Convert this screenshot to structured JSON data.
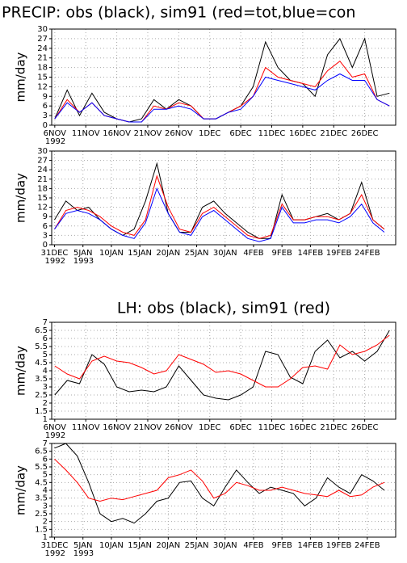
{
  "chart_data": [
    {
      "type": "line",
      "title": "PRECIP: obs (black), sim91 (red=tot,blue=con",
      "ylabel": "mm/day",
      "x": [
        0,
        2,
        4,
        6,
        8,
        10,
        12,
        14,
        16,
        18,
        20,
        22,
        24,
        26,
        28,
        30,
        32,
        34,
        36,
        38,
        40,
        42,
        44,
        46,
        48,
        50,
        52,
        54
      ],
      "xlim": [
        -0.5,
        55
      ],
      "xticks": [
        {
          "value": 0,
          "label": "6NOV"
        },
        {
          "value": 5,
          "label": "11NOV"
        },
        {
          "value": 10,
          "label": "16NOV"
        },
        {
          "value": 15,
          "label": "21NOV"
        },
        {
          "value": 20,
          "label": "26NOV"
        },
        {
          "value": 25,
          "label": "1DEC"
        },
        {
          "value": 30,
          "label": "6DEC"
        },
        {
          "value": 35,
          "label": "11DEC"
        },
        {
          "value": 40,
          "label": "16DEC"
        },
        {
          "value": 45,
          "label": "21DEC"
        },
        {
          "value": 50,
          "label": "26DEC"
        }
      ],
      "xtick_years": [
        {
          "value": 0,
          "label": "1992"
        }
      ],
      "ylim": [
        0,
        30
      ],
      "yticks": [
        0,
        3,
        6,
        9,
        12,
        15,
        18,
        21,
        24,
        27,
        30
      ],
      "grid": true,
      "series": [
        {
          "color": "#000000",
          "values": [
            2,
            11,
            3,
            10,
            4,
            2,
            1,
            2,
            8,
            5,
            8,
            6,
            2,
            2,
            4,
            6,
            12,
            26,
            18,
            14,
            13,
            9,
            22,
            27,
            18,
            27,
            9,
            10
          ]
        },
        {
          "color": "#ff0000",
          "values": [
            2,
            8,
            4,
            7,
            3,
            2,
            1,
            1,
            6,
            5,
            7,
            6,
            2,
            2,
            4,
            6,
            9,
            18,
            15,
            14,
            13,
            12,
            17,
            20,
            15,
            16,
            8,
            6
          ]
        },
        {
          "color": "#0000ff",
          "values": [
            2,
            7,
            4,
            7,
            3,
            2,
            1,
            1,
            5,
            5,
            6,
            5,
            2,
            2,
            4,
            5,
            9,
            15,
            14,
            13,
            12,
            11,
            14,
            16,
            14,
            14,
            8,
            6
          ]
        }
      ]
    },
    {
      "type": "line",
      "ylabel": "mm/day",
      "x": [
        0,
        2,
        4,
        6,
        8,
        10,
        12,
        14,
        16,
        18,
        20,
        22,
        24,
        26,
        28,
        30,
        32,
        34,
        36,
        38,
        40,
        42,
        44,
        46,
        48,
        50,
        52,
        54,
        56,
        58
      ],
      "xlim": [
        -0.5,
        60
      ],
      "xticks": [
        {
          "value": 0,
          "label": "31DEC"
        },
        {
          "value": 5,
          "label": "5JAN"
        },
        {
          "value": 10,
          "label": "10JAN"
        },
        {
          "value": 15,
          "label": "15JAN"
        },
        {
          "value": 20,
          "label": "20JAN"
        },
        {
          "value": 25,
          "label": "25JAN"
        },
        {
          "value": 30,
          "label": "30JAN"
        },
        {
          "value": 35,
          "label": "4FEB"
        },
        {
          "value": 40,
          "label": "9FEB"
        },
        {
          "value": 45,
          "label": "14FEB"
        },
        {
          "value": 50,
          "label": "19FEB"
        },
        {
          "value": 55,
          "label": "24FEB"
        }
      ],
      "xtick_years": [
        {
          "value": 0,
          "label": "1992"
        },
        {
          "value": 5,
          "label": "1993"
        }
      ],
      "ylim": [
        0,
        30
      ],
      "yticks": [
        0,
        3,
        6,
        9,
        12,
        15,
        18,
        21,
        24,
        27,
        30
      ],
      "grid": true,
      "series": [
        {
          "color": "#000000",
          "values": [
            8,
            14,
            11,
            12,
            8,
            5,
            3,
            5,
            14,
            26,
            10,
            4,
            4,
            12,
            14,
            10,
            7,
            4,
            2,
            2,
            16,
            8,
            8,
            9,
            10,
            8,
            10,
            20,
            8,
            5
          ]
        },
        {
          "color": "#ff0000",
          "values": [
            5,
            11,
            12,
            11,
            9,
            6,
            4,
            3,
            8,
            22,
            12,
            5,
            4,
            10,
            12,
            9,
            6,
            3,
            2,
            3,
            13,
            8,
            8,
            9,
            9,
            8,
            10,
            16,
            8,
            5
          ]
        },
        {
          "color": "#0000ff",
          "values": [
            5,
            10,
            11,
            10,
            8,
            5,
            3,
            2,
            7,
            18,
            10,
            4,
            3,
            9,
            11,
            8,
            5,
            2,
            1,
            2,
            12,
            7,
            7,
            8,
            8,
            7,
            9,
            13,
            7,
            4
          ]
        }
      ]
    },
    {
      "type": "line",
      "title": "LH: obs (black), sim91 (red)",
      "ylabel": "mm/day",
      "x": [
        0,
        2,
        4,
        6,
        8,
        10,
        12,
        14,
        16,
        18,
        20,
        22,
        24,
        26,
        28,
        30,
        32,
        34,
        36,
        38,
        40,
        42,
        44,
        46,
        48,
        50,
        52,
        54
      ],
      "xlim": [
        -0.5,
        55
      ],
      "xticks": [
        {
          "value": 0,
          "label": "6NOV"
        },
        {
          "value": 5,
          "label": "11NOV"
        },
        {
          "value": 10,
          "label": "16NOV"
        },
        {
          "value": 15,
          "label": "21NOV"
        },
        {
          "value": 20,
          "label": "26NOV"
        },
        {
          "value": 25,
          "label": "1DEC"
        },
        {
          "value": 30,
          "label": "6DEC"
        },
        {
          "value": 35,
          "label": "11DEC"
        },
        {
          "value": 40,
          "label": "16DEC"
        },
        {
          "value": 45,
          "label": "21DEC"
        },
        {
          "value": 50,
          "label": "26DEC"
        }
      ],
      "xtick_years": [
        {
          "value": 0,
          "label": "1992"
        }
      ],
      "ylim": [
        1,
        7
      ],
      "yticks": [
        1,
        1.5,
        2,
        2.5,
        3,
        3.5,
        4,
        4.5,
        5,
        5.5,
        6,
        6.5,
        7
      ],
      "grid": true,
      "series": [
        {
          "color": "#000000",
          "values": [
            2.5,
            3.4,
            3.2,
            5.0,
            4.4,
            3.0,
            2.7,
            2.8,
            2.7,
            3.0,
            4.3,
            3.4,
            2.5,
            2.3,
            2.2,
            2.5,
            3.0,
            5.2,
            5.0,
            3.6,
            3.2,
            5.2,
            5.9,
            4.8,
            5.2,
            4.6,
            5.2,
            6.5
          ]
        },
        {
          "color": "#ff0000",
          "values": [
            4.3,
            3.8,
            3.5,
            4.6,
            4.9,
            4.6,
            4.5,
            4.2,
            3.8,
            4.0,
            5.0,
            4.7,
            4.4,
            3.9,
            4.0,
            3.8,
            3.4,
            3.0,
            3.0,
            3.5,
            4.2,
            4.3,
            4.1,
            5.6,
            5.0,
            5.2,
            5.6,
            6.2
          ]
        }
      ]
    },
    {
      "type": "line",
      "ylabel": "mm/day",
      "x": [
        0,
        2,
        4,
        6,
        8,
        10,
        12,
        14,
        16,
        18,
        20,
        22,
        24,
        26,
        28,
        30,
        32,
        34,
        36,
        38,
        40,
        42,
        44,
        46,
        48,
        50,
        52,
        54,
        56,
        58
      ],
      "xlim": [
        -0.5,
        60
      ],
      "xticks": [
        {
          "value": 0,
          "label": "31DEC"
        },
        {
          "value": 5,
          "label": "5JAN"
        },
        {
          "value": 10,
          "label": "10JAN"
        },
        {
          "value": 15,
          "label": "15JAN"
        },
        {
          "value": 20,
          "label": "20JAN"
        },
        {
          "value": 25,
          "label": "25JAN"
        },
        {
          "value": 30,
          "label": "30JAN"
        },
        {
          "value": 35,
          "label": "4FEB"
        },
        {
          "value": 40,
          "label": "9FEB"
        },
        {
          "value": 45,
          "label": "14FEB"
        },
        {
          "value": 50,
          "label": "19FEB"
        },
        {
          "value": 55,
          "label": "24FEB"
        }
      ],
      "xtick_years": [
        {
          "value": 0,
          "label": "1992"
        },
        {
          "value": 5,
          "label": "1993"
        }
      ],
      "ylim": [
        1,
        7
      ],
      "yticks": [
        1,
        1.5,
        2,
        2.5,
        3,
        3.5,
        4,
        4.5,
        5,
        5.5,
        6,
        6.5,
        7
      ],
      "grid": true,
      "series": [
        {
          "color": "#000000",
          "values": [
            6.7,
            7.0,
            6.2,
            4.5,
            2.5,
            2.0,
            2.2,
            1.9,
            2.5,
            3.3,
            3.5,
            4.5,
            4.6,
            3.5,
            3.0,
            4.2,
            5.3,
            4.5,
            3.8,
            4.2,
            4.0,
            3.8,
            3.0,
            3.5,
            4.8,
            4.2,
            3.8,
            5.0,
            4.6,
            4.0
          ]
        },
        {
          "color": "#ff0000",
          "values": [
            6.0,
            5.3,
            4.5,
            3.5,
            3.3,
            3.5,
            3.4,
            3.6,
            3.8,
            4.0,
            4.8,
            5.0,
            5.3,
            4.6,
            3.5,
            3.8,
            4.5,
            4.3,
            4.0,
            4.0,
            4.2,
            4.0,
            3.8,
            3.7,
            3.6,
            4.0,
            3.6,
            3.7,
            4.2,
            4.5
          ]
        }
      ]
    }
  ]
}
